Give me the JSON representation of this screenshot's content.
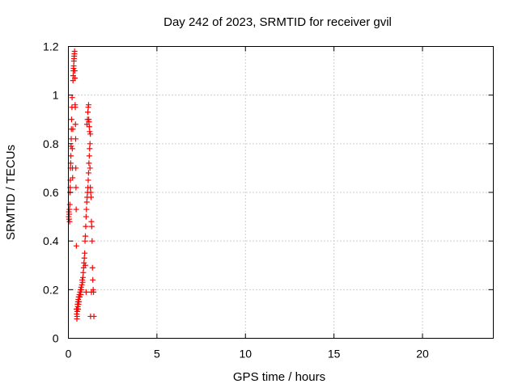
{
  "chart_data": {
    "type": "scatter",
    "title": "Day 242 of 2023, SRMTID for receiver gvil",
    "xlabel": "GPS time / hours",
    "ylabel": "SRMTID / TECUs",
    "xlim": [
      0,
      24
    ],
    "ylim": [
      0,
      1.2
    ],
    "x_ticks": [
      0,
      5,
      10,
      15,
      20
    ],
    "x_tick_labels": [
      "0",
      "5",
      "10",
      "15",
      "20"
    ],
    "y_ticks": [
      0,
      0.2,
      0.4,
      0.6,
      0.8,
      1,
      1.2
    ],
    "y_tick_labels": [
      "0",
      "0.2",
      "0.4",
      "0.6",
      "0.8",
      "1",
      "1.2"
    ],
    "grid": true,
    "marker": "plus",
    "series": [
      {
        "color": "#ff0000",
        "points": [
          [
            0.02,
            0.5
          ],
          [
            0.03,
            0.52
          ],
          [
            0.04,
            0.49
          ],
          [
            0.05,
            0.51
          ],
          [
            0.06,
            0.53
          ],
          [
            0.07,
            0.48
          ],
          [
            0.08,
            0.55
          ],
          [
            0.09,
            0.6
          ],
          [
            0.1,
            0.62
          ],
          [
            0.11,
            0.65
          ],
          [
            0.12,
            0.7
          ],
          [
            0.13,
            0.72
          ],
          [
            0.14,
            0.75
          ],
          [
            0.15,
            0.79
          ],
          [
            0.16,
            0.82
          ],
          [
            0.17,
            0.86
          ],
          [
            0.18,
            0.9
          ],
          [
            0.2,
            0.95
          ],
          [
            0.21,
            0.99
          ],
          [
            0.22,
            0.78
          ],
          [
            0.23,
            0.7
          ],
          [
            0.24,
            0.66
          ],
          [
            0.25,
            0.86
          ],
          [
            0.26,
            1.06
          ],
          [
            0.27,
            1.08
          ],
          [
            0.28,
            1.1
          ],
          [
            0.29,
            1.11
          ],
          [
            0.3,
            1.12
          ],
          [
            0.31,
            1.14
          ],
          [
            0.32,
            1.15
          ],
          [
            0.33,
            1.16
          ],
          [
            0.34,
            1.17
          ],
          [
            0.35,
            1.18
          ],
          [
            0.36,
            1.1
          ],
          [
            0.37,
            1.07
          ],
          [
            0.38,
            0.96
          ],
          [
            0.39,
            0.95
          ],
          [
            0.4,
            0.88
          ],
          [
            0.41,
            0.82
          ],
          [
            0.42,
            0.7
          ],
          [
            0.43,
            0.62
          ],
          [
            0.44,
            0.53
          ],
          [
            0.45,
            0.38
          ],
          [
            0.46,
            0.12
          ],
          [
            0.47,
            0.1
          ],
          [
            0.48,
            0.08
          ],
          [
            0.49,
            0.09
          ],
          [
            0.5,
            0.11
          ],
          [
            0.51,
            0.12
          ],
          [
            0.52,
            0.14
          ],
          [
            0.53,
            0.13
          ],
          [
            0.54,
            0.15
          ],
          [
            0.55,
            0.12
          ],
          [
            0.56,
            0.16
          ],
          [
            0.57,
            0.14
          ],
          [
            0.58,
            0.17
          ],
          [
            0.6,
            0.15
          ],
          [
            0.62,
            0.18
          ],
          [
            0.64,
            0.17
          ],
          [
            0.66,
            0.19
          ],
          [
            0.68,
            0.2
          ],
          [
            0.7,
            0.18
          ],
          [
            0.72,
            0.21
          ],
          [
            0.74,
            0.2
          ],
          [
            0.76,
            0.22
          ],
          [
            0.78,
            0.24
          ],
          [
            0.8,
            0.23
          ],
          [
            0.82,
            0.25
          ],
          [
            0.84,
            0.27
          ],
          [
            0.86,
            0.29
          ],
          [
            0.88,
            0.31
          ],
          [
            0.9,
            0.33
          ],
          [
            0.92,
            0.35
          ],
          [
            0.94,
            0.4
          ],
          [
            0.96,
            0.42
          ],
          [
            0.98,
            0.46
          ],
          [
            1.0,
            0.5
          ],
          [
            1.02,
            0.53
          ],
          [
            1.04,
            0.56
          ],
          [
            1.06,
            0.58
          ],
          [
            1.08,
            0.6
          ],
          [
            1.1,
            0.62
          ],
          [
            1.12,
            0.65
          ],
          [
            1.14,
            0.68
          ],
          [
            1.16,
            0.72
          ],
          [
            1.18,
            0.75
          ],
          [
            1.2,
            0.78
          ],
          [
            1.22,
            0.8
          ],
          [
            1.24,
            0.84
          ],
          [
            1.05,
            0.88
          ],
          [
            1.08,
            0.9
          ],
          [
            1.1,
            0.93
          ],
          [
            1.12,
            0.95
          ],
          [
            1.14,
            0.96
          ],
          [
            1.16,
            0.89
          ],
          [
            1.18,
            0.87
          ],
          [
            1.2,
            0.85
          ],
          [
            1.22,
            0.7
          ],
          [
            1.24,
            0.62
          ],
          [
            1.26,
            0.6
          ],
          [
            1.28,
            0.58
          ],
          [
            1.3,
            0.48
          ],
          [
            1.32,
            0.46
          ],
          [
            1.34,
            0.4
          ],
          [
            1.36,
            0.29
          ],
          [
            1.38,
            0.24
          ],
          [
            1.4,
            0.2
          ],
          [
            1.42,
            0.19
          ],
          [
            1.44,
            0.09
          ],
          [
            1.3,
            0.19
          ],
          [
            1.25,
            0.09
          ],
          [
            1.0,
            0.19
          ],
          [
            0.95,
            0.3
          ],
          [
            1.15,
            0.9
          ]
        ]
      }
    ]
  }
}
